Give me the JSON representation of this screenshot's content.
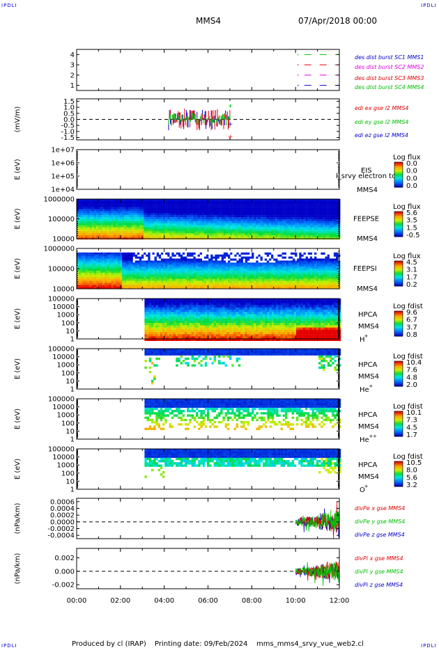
{
  "header": {
    "corner_left_top": "IPDLI",
    "corner_right_top": "IPDLI",
    "corner_left_bottom": "IPDLI",
    "corner_right_bottom": "IPDLI",
    "title": "MMS4",
    "datetime": "07/Apr/2018 00:00"
  },
  "footer": {
    "produced": "Produced by cl (IRAP)",
    "printing": "Printing date: 09/Feb/2024",
    "script": "mms_mms4_srvy_vue_web2.cl"
  },
  "colors": {
    "red": "#e00000",
    "green": "#00c000",
    "blue": "#0000d0",
    "magenta": "#e000e0"
  },
  "chart_data": {
    "type": "line",
    "xticks": [
      "00:00",
      "02:00",
      "04:00",
      "06:00",
      "08:00",
      "10:00",
      "12:00"
    ],
    "xlim": [
      0,
      12
    ],
    "panels": [
      {
        "id": "burst",
        "type": "line",
        "yticks": [
          "1",
          "2",
          "3",
          "4"
        ],
        "ylim": [
          0.5,
          4.5
        ],
        "legend": [
          {
            "label": "des dist burst SC1 MMS1",
            "color": "#0000d0"
          },
          {
            "label": "des dist burst SC2 MMS2",
            "color": "#e000e0"
          },
          {
            "label": "des dist burst SC3 MMS3",
            "color": "#e00000"
          },
          {
            "label": "des dist burst SC4 MMS4",
            "color": "#00c000"
          }
        ],
        "series": [
          {
            "level": 1,
            "x": [
              10.4,
              12.0
            ],
            "color": "#0000d0"
          },
          {
            "level": 2,
            "x": [
              10.4,
              12.0
            ],
            "color": "#e000e0"
          },
          {
            "level": 3,
            "x": [
              10.4,
              12.0
            ],
            "color": "#e00000"
          },
          {
            "level": 4,
            "x": [
              10.4,
              12.0
            ],
            "color": "#00c000"
          }
        ]
      },
      {
        "id": "edi",
        "type": "line",
        "ylabel": "(mV/m)",
        "yticks": [
          "1.5",
          "1.0",
          "0.5",
          "0.0",
          "-0.5",
          "-1.0",
          "-1.5"
        ],
        "ylim": [
          -1.7,
          1.7
        ],
        "legend": [
          {
            "label": "edi ex gse l2 MMS4",
            "color": "#e00000"
          },
          {
            "label": "edi ey gse l2 MMS4",
            "color": "#00c000"
          },
          {
            "label": "edi ez gse l2 MMS4",
            "color": "#0000d0"
          }
        ],
        "range_x": [
          4.2,
          7.0
        ]
      },
      {
        "id": "eis",
        "type": "heatmap",
        "ylabel": "E (eV)",
        "yticks": [
          "1e+07",
          "1e+06",
          "1e+05",
          "1e+04"
        ],
        "labels": [
          "EIS",
          "MMS4"
        ],
        "overlay": "l_srvy electron to",
        "colorbar_title": "Log flux",
        "colorbar_ticks": [
          "0.0",
          "0.0",
          "0.0",
          "0.0"
        ]
      },
      {
        "id": "feepse",
        "type": "heatmap",
        "ylabel": "E (eV)",
        "yticks": [
          "1000000",
          "100000",
          "10000"
        ],
        "labels": [
          "FEEPSE",
          "MMS4"
        ],
        "colorbar_title": "Log flux",
        "colorbar_ticks": [
          "5.6",
          "3.5",
          "1.5",
          "-0.5"
        ]
      },
      {
        "id": "feepsi",
        "type": "heatmap",
        "ylabel": "E (eV)",
        "yticks": [
          "1000000",
          "100000",
          "10000"
        ],
        "labels": [
          "FEEPSI",
          "MMS4"
        ],
        "colorbar_title": "Log flux",
        "colorbar_ticks": [
          "4.5",
          "3.1",
          "1.7",
          "0.2"
        ]
      },
      {
        "id": "hpca_h",
        "type": "heatmap",
        "ylabel": "E (eV)",
        "yticks": [
          "100000",
          "10000",
          "1000",
          "100",
          "10",
          "1"
        ],
        "labels": [
          "HPCA",
          "MMS4"
        ],
        "species": "H",
        "species_sup": "+",
        "start_hour": 3.1,
        "colorbar_title": "Log fdist",
        "colorbar_ticks": [
          "9.6",
          "6.7",
          "3.7",
          "0.8"
        ]
      },
      {
        "id": "hpca_he",
        "type": "heatmap",
        "ylabel": "E (eV)",
        "yticks": [
          "100000",
          "10000",
          "1000",
          "100",
          "10",
          "1"
        ],
        "labels": [
          "HPCA",
          "MMS4"
        ],
        "species": "He",
        "species_sup": "+",
        "start_hour": 3.1,
        "colorbar_title": "Log fdist",
        "colorbar_ticks": [
          "10.4",
          "7.6",
          "4.8",
          "2.0"
        ]
      },
      {
        "id": "hpca_he2",
        "type": "heatmap",
        "ylabel": "E (eV)",
        "yticks": [
          "100000",
          "10000",
          "1000",
          "100",
          "10",
          "1"
        ],
        "labels": [
          "HPCA",
          "MMS4"
        ],
        "species": "He",
        "species_sup": "++",
        "start_hour": 3.1,
        "colorbar_title": "Log fdist",
        "colorbar_ticks": [
          "10.1",
          "7.3",
          "4.5",
          "1.7"
        ]
      },
      {
        "id": "hpca_o",
        "type": "heatmap",
        "ylabel": "E (eV)",
        "yticks": [
          "100000",
          "10000",
          "1000",
          "100",
          "10",
          "1"
        ],
        "labels": [
          "HPCA",
          "MMS4"
        ],
        "species": "O",
        "species_sup": "+",
        "start_hour": 3.1,
        "colorbar_title": "Log fdist",
        "colorbar_ticks": [
          "10.5",
          "8.0",
          "5.6",
          "3.2"
        ]
      },
      {
        "id": "divpe",
        "type": "line",
        "ylabel": "(nPa/km)",
        "yticks": [
          "0.0006",
          "0.0004",
          "0.0002",
          "0.0000",
          "-0.0002",
          "-0.0004"
        ],
        "ylim": [
          -0.0005,
          0.0007
        ],
        "legend": [
          {
            "label": "divPe x gse MMS4",
            "color": "#e00000"
          },
          {
            "label": "divPe y gse MMS4",
            "color": "#00c000"
          },
          {
            "label": "divPe z gse MMS4",
            "color": "#0000d0"
          }
        ],
        "range_x": [
          10.0,
          12.0
        ]
      },
      {
        "id": "divpi",
        "type": "line",
        "ylabel": "(nPa/km)",
        "yticks": [
          "0.002",
          "0.000",
          "-0.002"
        ],
        "ylim": [
          -0.0026,
          0.0034
        ],
        "legend": [
          {
            "label": "divPi x gse MMS4",
            "color": "#e00000"
          },
          {
            "label": "divPi y gse MMS4",
            "color": "#00c000"
          },
          {
            "label": "divPi z gse MMS4",
            "color": "#0000d0"
          }
        ],
        "range_x": [
          10.0,
          12.0
        ]
      }
    ]
  }
}
